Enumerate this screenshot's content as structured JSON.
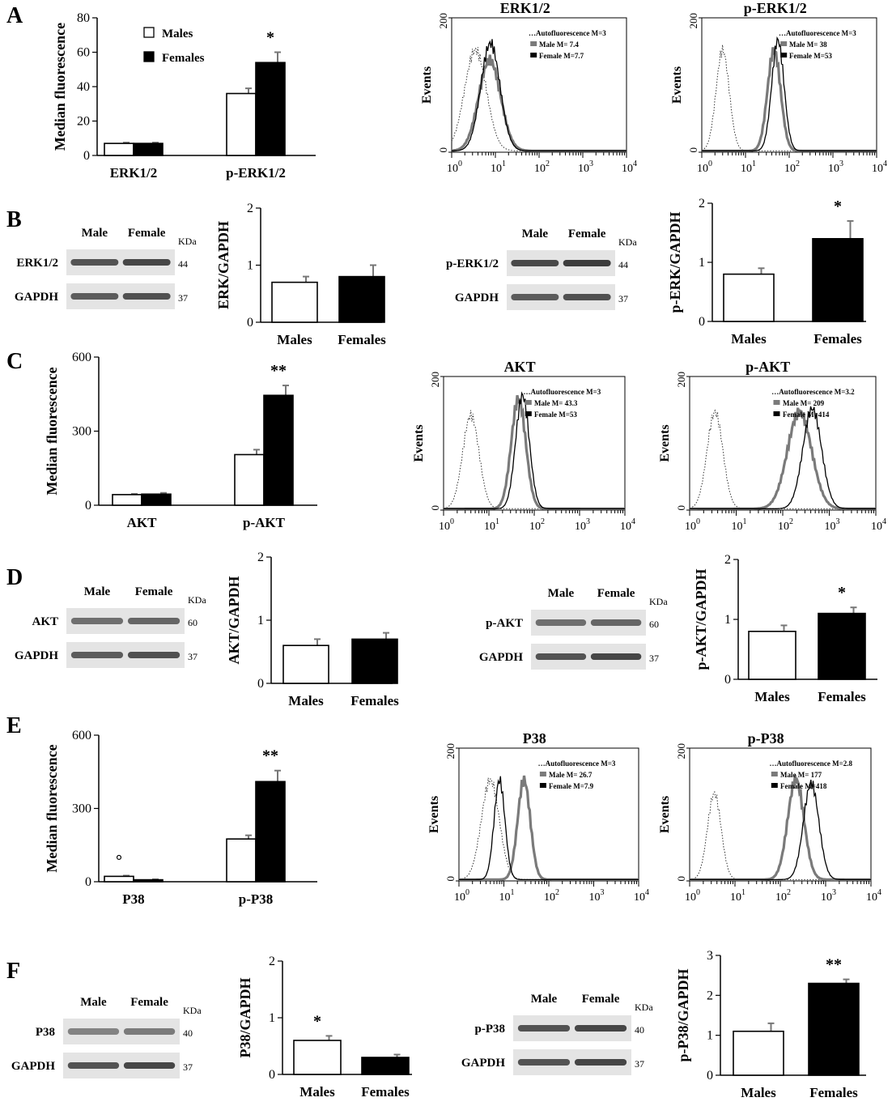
{
  "panels": [
    {
      "id": "A",
      "label": "A",
      "flow_keys": [
        "A_erk",
        "A_perk"
      ]
    },
    {
      "id": "B",
      "label": "B",
      "flow_keys": []
    },
    {
      "id": "C",
      "label": "C",
      "flow_keys": [
        "C_akt",
        "C_pakt"
      ]
    },
    {
      "id": "D",
      "label": "D",
      "flow_keys": []
    },
    {
      "id": "E",
      "label": "E",
      "flow_keys": [
        "E_p38",
        "E_pp38"
      ]
    },
    {
      "id": "F",
      "label": "F",
      "flow_keys": []
    }
  ],
  "chart_data": [
    {
      "id": "A_bar",
      "type": "bar",
      "ylabel": "Median fluorescence",
      "ylim": [
        0,
        80
      ],
      "yticks": [
        0,
        20,
        40,
        60,
        80
      ],
      "categories": [
        "ERK1/2",
        "p-ERK1/2"
      ],
      "series": [
        {
          "name": "Males",
          "color": "#ffffff",
          "values": [
            7,
            36
          ],
          "errors": [
            0.5,
            3
          ]
        },
        {
          "name": "Females",
          "color": "#000000",
          "values": [
            7,
            54
          ],
          "errors": [
            0.5,
            6
          ]
        }
      ],
      "annotations": [
        {
          "text": "*",
          "category": 1,
          "series": 1
        }
      ],
      "legend": "top-left"
    },
    {
      "id": "A_erk",
      "type": "histogram",
      "title": "ERK1/2",
      "ylabel": "Events",
      "xscale": "log",
      "xlim": [
        1,
        10000
      ],
      "ylim": [
        0,
        200
      ],
      "legend": [
        {
          "text": "…Autofluorescence M=3",
          "style": "dotted"
        },
        {
          "text": "Male M= 7.4",
          "style": "gray"
        },
        {
          "text": "Female M=7.7",
          "style": "black"
        }
      ],
      "series": [
        {
          "name": "Autofluorescence",
          "style": "dotted",
          "peak": 3.5,
          "height": 150,
          "width": 0.25
        },
        {
          "name": "Male",
          "style": "gray",
          "peak": 7.4,
          "height": 135,
          "width": 0.25
        },
        {
          "name": "Female",
          "style": "black",
          "peak": 7.7,
          "height": 160,
          "width": 0.22
        }
      ]
    },
    {
      "id": "A_perk",
      "type": "histogram",
      "title": "p-ERK1/2",
      "ylabel": "Events",
      "xscale": "log",
      "xlim": [
        1,
        10000
      ],
      "ylim": [
        0,
        200
      ],
      "legend": [
        {
          "text": "…Autofluorescence M=3",
          "style": "dotted"
        },
        {
          "text": "Male M= 38",
          "style": "gray"
        },
        {
          "text": "Female M=53",
          "style": "black"
        }
      ],
      "series": [
        {
          "name": "Autofluorescence",
          "style": "dotted",
          "peak": 3,
          "height": 150,
          "width": 0.15
        },
        {
          "name": "Male",
          "style": "gray",
          "peak": 45,
          "height": 150,
          "width": 0.15
        },
        {
          "name": "Female",
          "style": "black",
          "peak": 55,
          "height": 165,
          "width": 0.14
        }
      ]
    },
    {
      "id": "B_erk",
      "type": "bar",
      "ylabel": "ERK/GAPDH",
      "ylim": [
        0,
        2
      ],
      "yticks": [
        0,
        1,
        2
      ],
      "categories": [
        "Males",
        "Females"
      ],
      "series": [
        {
          "name": "",
          "values": [
            0.7,
            0.8
          ],
          "errors": [
            0.1,
            0.2
          ],
          "colors": [
            "#ffffff",
            "#000000"
          ]
        }
      ],
      "annotations": []
    },
    {
      "id": "B_perk",
      "type": "bar",
      "ylabel": "p-ERK/GAPDH",
      "ylim": [
        0,
        2
      ],
      "yticks": [
        0,
        1,
        2
      ],
      "categories": [
        "Males",
        "Females"
      ],
      "series": [
        {
          "name": "",
          "values": [
            0.8,
            1.4
          ],
          "errors": [
            0.1,
            0.3
          ],
          "colors": [
            "#ffffff",
            "#000000"
          ]
        }
      ],
      "annotations": [
        {
          "text": "*",
          "category": 1,
          "series": 0
        }
      ]
    },
    {
      "id": "C_bar",
      "type": "bar",
      "ylabel": "Median fluorescence",
      "ylim": [
        0,
        600
      ],
      "yticks": [
        0,
        300,
        600
      ],
      "categories": [
        "AKT",
        "p-AKT"
      ],
      "series": [
        {
          "name": "Males",
          "color": "#ffffff",
          "values": [
            43,
            205
          ],
          "errors": [
            3,
            20
          ]
        },
        {
          "name": "Females",
          "color": "#000000",
          "values": [
            45,
            445
          ],
          "errors": [
            5,
            40
          ]
        }
      ],
      "annotations": [
        {
          "text": "**",
          "category": 1,
          "series": 1
        }
      ]
    },
    {
      "id": "C_akt",
      "type": "histogram",
      "title": "AKT",
      "ylabel": "Events",
      "xscale": "log",
      "xlim": [
        1,
        10000
      ],
      "ylim": [
        0,
        200
      ],
      "legend": [
        {
          "text": "…Autofluorescence M=3",
          "style": "dotted"
        },
        {
          "text": "Male M= 43.3",
          "style": "gray"
        },
        {
          "text": "Female M=53",
          "style": "black"
        }
      ],
      "series": [
        {
          "name": "Autofluorescence",
          "style": "dotted",
          "peak": 4,
          "height": 140,
          "width": 0.18
        },
        {
          "name": "Male",
          "style": "gray",
          "peak": 45,
          "height": 165,
          "width": 0.16
        },
        {
          "name": "Female",
          "style": "black",
          "peak": 55,
          "height": 170,
          "width": 0.15
        }
      ]
    },
    {
      "id": "C_pakt",
      "type": "histogram",
      "title": "p-AKT",
      "ylabel": "Events",
      "xscale": "log",
      "xlim": [
        1,
        10000
      ],
      "ylim": [
        0,
        200
      ],
      "legend": [
        {
          "text": "…Autofluorescence M=3.2",
          "style": "dotted"
        },
        {
          "text": "Male M= 209",
          "style": "gray"
        },
        {
          "text": "Female M=414",
          "style": "black"
        }
      ],
      "series": [
        {
          "name": "Autofluorescence",
          "style": "dotted",
          "peak": 3.5,
          "height": 145,
          "width": 0.17
        },
        {
          "name": "Male",
          "style": "gray",
          "peak": 230,
          "height": 145,
          "width": 0.26
        },
        {
          "name": "Female",
          "style": "black",
          "peak": 430,
          "height": 150,
          "width": 0.2
        }
      ]
    },
    {
      "id": "D_akt",
      "type": "bar",
      "ylabel": "AKT/GAPDH",
      "ylim": [
        0,
        2
      ],
      "yticks": [
        0,
        1,
        2
      ],
      "categories": [
        "Males",
        "Females"
      ],
      "series": [
        {
          "name": "",
          "values": [
            0.6,
            0.7
          ],
          "errors": [
            0.1,
            0.1
          ],
          "colors": [
            "#ffffff",
            "#000000"
          ]
        }
      ],
      "annotations": []
    },
    {
      "id": "D_pakt",
      "type": "bar",
      "ylabel": "p-AKT/GAPDH",
      "ylim": [
        0,
        2
      ],
      "yticks": [
        0,
        1,
        2
      ],
      "categories": [
        "Males",
        "Females"
      ],
      "series": [
        {
          "name": "",
          "values": [
            0.8,
            1.1
          ],
          "errors": [
            0.1,
            0.1
          ],
          "colors": [
            "#ffffff",
            "#000000"
          ]
        }
      ],
      "annotations": [
        {
          "text": "*",
          "category": 1,
          "series": 0
        }
      ]
    },
    {
      "id": "E_bar",
      "type": "bar",
      "ylabel": "Median fluorescence",
      "ylim": [
        0,
        600
      ],
      "yticks": [
        0,
        300,
        600
      ],
      "categories": [
        "P38",
        "p-P38"
      ],
      "series": [
        {
          "name": "Males",
          "color": "#ffffff",
          "values": [
            22,
            175
          ],
          "errors": [
            3,
            15
          ]
        },
        {
          "name": "Females",
          "color": "#000000",
          "values": [
            8,
            410
          ],
          "errors": [
            2,
            45
          ]
        }
      ],
      "annotations": [
        {
          "text": "°",
          "category": 0,
          "series": 0
        },
        {
          "text": "**",
          "category": 1,
          "series": 1
        }
      ]
    },
    {
      "id": "E_p38",
      "type": "histogram",
      "title": "P38",
      "ylabel": "Events",
      "xscale": "log",
      "xlim": [
        1,
        10000
      ],
      "ylim": [
        0,
        200
      ],
      "legend": [
        {
          "text": "…Autofluorescence M=3",
          "style": "dotted"
        },
        {
          "text": "Male M= 26.7",
          "style": "gray"
        },
        {
          "text": "Female M=7.9",
          "style": "black"
        }
      ],
      "series": [
        {
          "name": "Autofluorescence",
          "style": "dotted",
          "peak": 5,
          "height": 150,
          "width": 0.2
        },
        {
          "name": "Male",
          "style": "gray",
          "peak": 28,
          "height": 150,
          "width": 0.14
        },
        {
          "name": "Female",
          "style": "black",
          "peak": 8,
          "height": 150,
          "width": 0.12
        }
      ]
    },
    {
      "id": "E_pp38",
      "type": "histogram",
      "title": "p-P38",
      "ylabel": "Events",
      "xscale": "log",
      "xlim": [
        1,
        10000
      ],
      "ylim": [
        0,
        200
      ],
      "legend": [
        {
          "text": "…Autofluorescence M=2.8",
          "style": "dotted"
        },
        {
          "text": "Male M= 177",
          "style": "gray"
        },
        {
          "text": "Female M=418",
          "style": "black"
        }
      ],
      "series": [
        {
          "name": "Autofluorescence",
          "style": "dotted",
          "peak": 3.5,
          "height": 130,
          "width": 0.15
        },
        {
          "name": "Male",
          "style": "gray",
          "peak": 220,
          "height": 150,
          "width": 0.18
        },
        {
          "name": "Female",
          "style": "black",
          "peak": 480,
          "height": 145,
          "width": 0.17
        }
      ]
    },
    {
      "id": "F_p38",
      "type": "bar",
      "ylabel": "P38/GAPDH",
      "ylim": [
        0,
        2
      ],
      "yticks": [
        0,
        1,
        2
      ],
      "categories": [
        "Males",
        "Females"
      ],
      "series": [
        {
          "name": "",
          "values": [
            0.6,
            0.3
          ],
          "errors": [
            0.08,
            0.05
          ],
          "colors": [
            "#ffffff",
            "#000000"
          ]
        }
      ],
      "annotations": [
        {
          "text": "*",
          "category": 0,
          "series": 0
        }
      ]
    },
    {
      "id": "F_pp38",
      "type": "bar",
      "ylabel": "p-P38/GAPDH",
      "ylim": [
        0,
        3
      ],
      "yticks": [
        0,
        1,
        2,
        3
      ],
      "categories": [
        "Males",
        "Females"
      ],
      "series": [
        {
          "name": "",
          "values": [
            1.1,
            2.3
          ],
          "errors": [
            0.2,
            0.1
          ],
          "colors": [
            "#ffffff",
            "#000000"
          ]
        }
      ],
      "annotations": [
        {
          "text": "**",
          "category": 1,
          "series": 0
        }
      ]
    }
  ],
  "blots": [
    {
      "id": "B_erk",
      "lanes": [
        "Male",
        "Female"
      ],
      "unit": "KDa",
      "rows": [
        {
          "label": "ERK1/2",
          "kda": "44",
          "intensity": 0.75
        },
        {
          "label": "GAPDH",
          "kda": "37",
          "intensity": 0.7
        }
      ]
    },
    {
      "id": "B_perk",
      "lanes": [
        "Male",
        "Female"
      ],
      "unit": "KDa",
      "rows": [
        {
          "label": "p-ERK1/2",
          "kda": "44",
          "intensity": 0.8
        },
        {
          "label": "GAPDH",
          "kda": "37",
          "intensity": 0.7
        }
      ]
    },
    {
      "id": "D_akt",
      "lanes": [
        "Male",
        "Female"
      ],
      "unit": "KDa",
      "rows": [
        {
          "label": "AKT",
          "kda": "60",
          "intensity": 0.6
        },
        {
          "label": "GAPDH",
          "kda": "37",
          "intensity": 0.7
        }
      ]
    },
    {
      "id": "D_pakt",
      "lanes": [
        "Male",
        "Female"
      ],
      "unit": "KDa",
      "rows": [
        {
          "label": "p-AKT",
          "kda": "60",
          "intensity": 0.6
        },
        {
          "label": "GAPDH",
          "kda": "37",
          "intensity": 0.75
        }
      ]
    },
    {
      "id": "F_p38",
      "lanes": [
        "Male",
        "Female"
      ],
      "unit": "KDa",
      "rows": [
        {
          "label": "P38",
          "kda": "40",
          "intensity": 0.5
        },
        {
          "label": "GAPDH",
          "kda": "37",
          "intensity": 0.75
        }
      ]
    },
    {
      "id": "F_pp38",
      "lanes": [
        "Male",
        "Female"
      ],
      "unit": "KDa",
      "rows": [
        {
          "label": "p-P38",
          "kda": "40",
          "intensity": 0.75
        },
        {
          "label": "GAPDH",
          "kda": "37",
          "intensity": 0.75
        }
      ]
    }
  ]
}
